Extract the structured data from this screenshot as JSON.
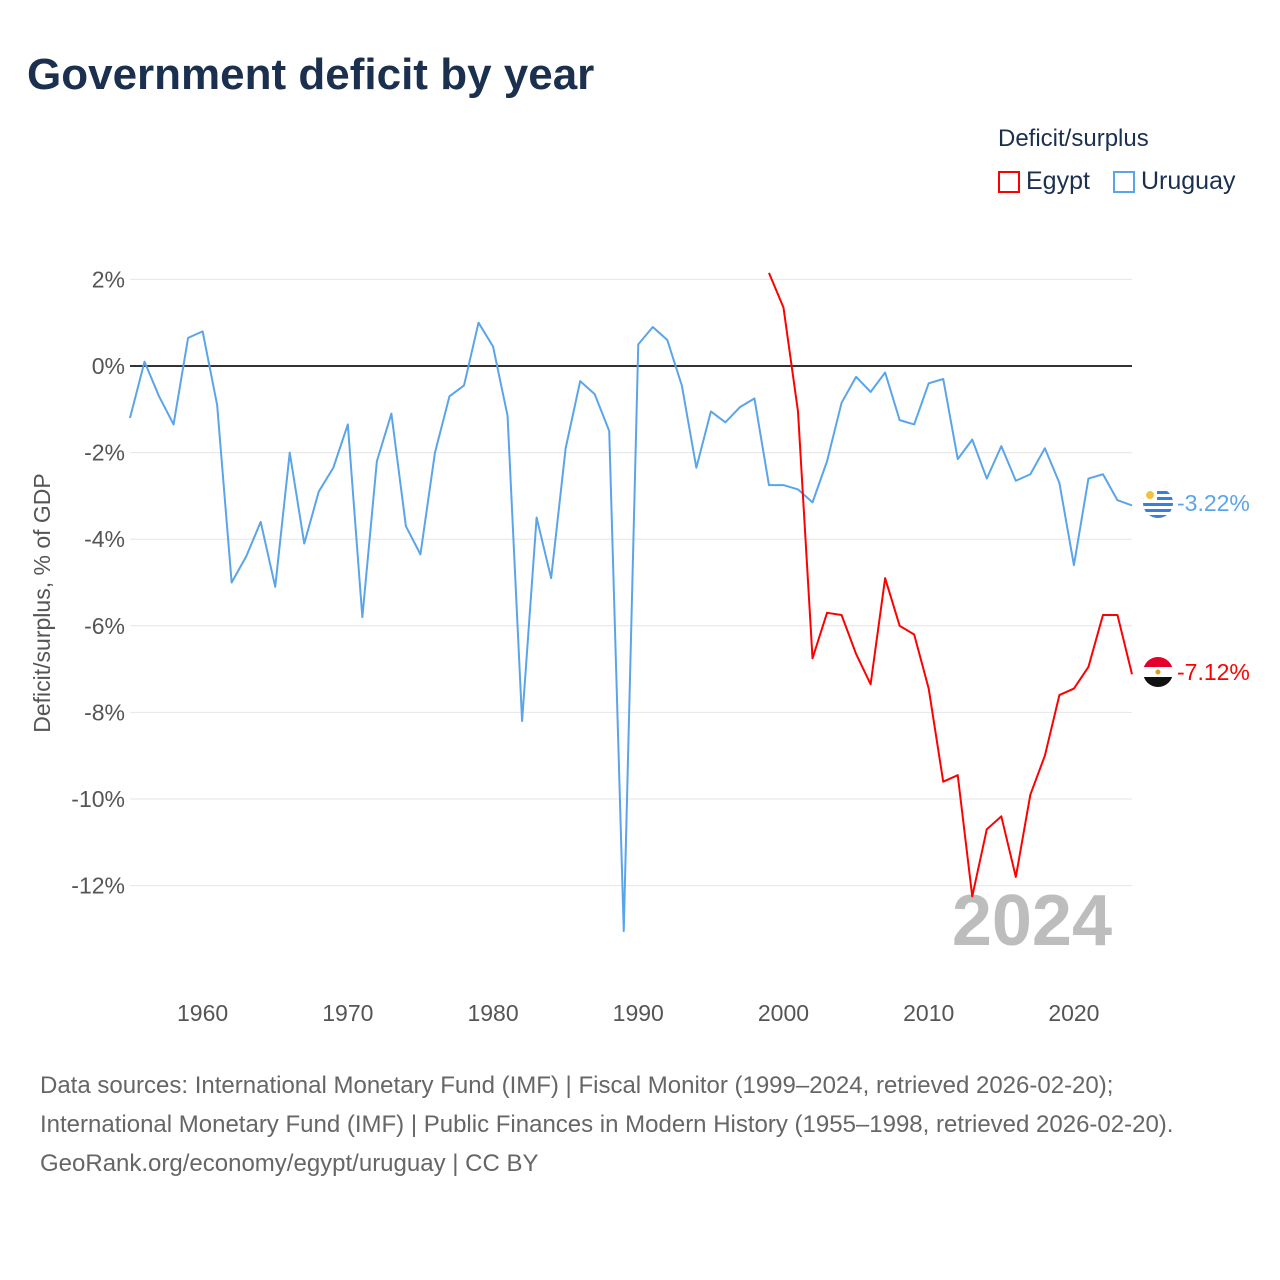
{
  "title": "Government deficit by year",
  "legend": {
    "title": "Deficit/surplus",
    "items": [
      {
        "name": "Egypt",
        "color": "#ff0000"
      },
      {
        "name": "Uruguay",
        "color": "#5aa5ea"
      }
    ]
  },
  "year_watermark": "2024",
  "end_labels": {
    "egypt": "-7.12%",
    "uruguay": "-3.22%"
  },
  "sources": {
    "line1": "Data sources: International Monetary Fund (IMF) | Fiscal Monitor (1999–2024, retrieved 2026-02-20); International Monetary Fund (IMF) | Public Finances in Modern History (1955–1998, retrieved 2026-02-20).",
    "line2": "GeoRank.org/economy/egypt/uruguay | CC BY"
  },
  "chart_data": {
    "type": "line",
    "title": "Government deficit by year",
    "xlabel": "",
    "ylabel": "Deficit/surplus, % of GDP",
    "xlim": [
      1955,
      2024
    ],
    "ylim": [
      -13.5,
      2.5
    ],
    "x_ticks": [
      1960,
      1970,
      1980,
      1990,
      2000,
      2010,
      2020
    ],
    "y_ticks": [
      2,
      0,
      -2,
      -4,
      -6,
      -8,
      -10,
      -12
    ],
    "y_tick_labels": [
      "2%",
      "0%",
      "-2%",
      "-4%",
      "-6%",
      "-8%",
      "-10%",
      "-12%"
    ],
    "grid": true,
    "legend_position": "top-right",
    "series": [
      {
        "name": "Uruguay",
        "color": "#5aa5ea",
        "start_year": 1955,
        "values": [
          -1.2,
          0.1,
          -0.7,
          -1.35,
          0.65,
          0.8,
          -0.9,
          -5.0,
          -4.4,
          -3.6,
          -5.1,
          -2.0,
          -4.1,
          -2.9,
          -2.35,
          -1.35,
          -5.8,
          -2.2,
          -1.1,
          -3.7,
          -4.35,
          -2.0,
          -0.7,
          -0.45,
          1.0,
          0.45,
          -1.15,
          -8.2,
          -3.5,
          -4.9,
          -1.9,
          -0.35,
          -0.65,
          -1.5,
          -13.05,
          0.5,
          0.9,
          0.6,
          -0.45,
          -2.35,
          -1.05,
          -1.3,
          -0.95,
          -0.75,
          -2.75,
          -2.75,
          -2.85,
          -3.15,
          -2.2,
          -0.85,
          -0.25,
          -0.6,
          -0.15,
          -1.25,
          -1.35,
          -0.4,
          -0.3,
          -2.15,
          -1.7,
          -2.6,
          -1.85,
          -2.65,
          -2.5,
          -1.9,
          -2.7,
          -4.6,
          -2.6,
          -2.5,
          -3.1,
          -3.22
        ]
      },
      {
        "name": "Egypt",
        "color": "#ff0000",
        "start_year": 1999,
        "values": [
          2.15,
          1.35,
          -1.05,
          -6.75,
          -5.7,
          -5.75,
          -6.65,
          -7.35,
          -4.9,
          -6.0,
          -6.2,
          -7.45,
          -9.6,
          -9.45,
          -12.25,
          -10.7,
          -10.4,
          -11.8,
          -9.9,
          -9.0,
          -7.6,
          -7.45,
          -6.95,
          -5.75,
          -5.75,
          -7.12
        ]
      }
    ]
  }
}
